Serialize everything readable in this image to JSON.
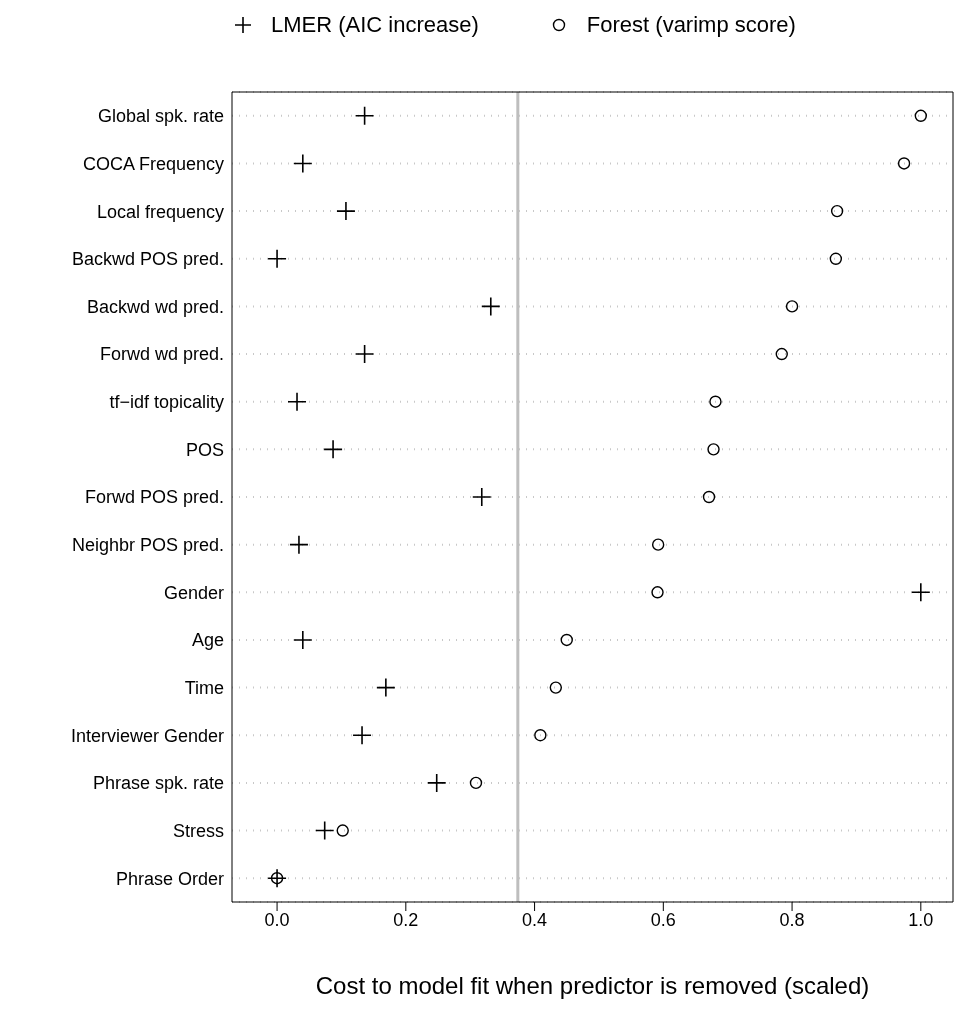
{
  "chart_data": {
    "type": "scatter",
    "xlabel": "Cost to model fit when predictor is removed (scaled)",
    "categories": [
      "Global spk. rate",
      "COCA Frequency",
      "Local frequency",
      "Backwd POS pred.",
      "Backwd wd pred.",
      "Forwd wd pred.",
      "tf−idf topicality",
      "POS",
      "Forwd POS pred.",
      "Neighbr POS pred.",
      "Gender",
      "Age",
      "Time",
      "Interviewer Gender",
      "Phrase spk. rate",
      "Stress",
      "Phrase Order"
    ],
    "series": [
      {
        "name": "LMER (AIC increase)",
        "color": "#000000",
        "marker": "cross",
        "values": [
          0.136,
          0.04,
          0.107,
          0.0,
          0.332,
          0.136,
          0.031,
          0.087,
          0.318,
          0.034,
          1.0,
          0.04,
          0.169,
          0.132,
          0.248,
          0.074,
          0.0
        ]
      },
      {
        "name": "Forest (varimp score)",
        "color": "#000000",
        "marker": "circle",
        "values": [
          1.0,
          0.974,
          0.87,
          0.868,
          0.8,
          0.784,
          0.681,
          0.678,
          0.671,
          0.592,
          0.591,
          0.45,
          0.433,
          0.409,
          0.309,
          0.102,
          0.0
        ]
      }
    ],
    "orientation": "horizontal",
    "xlim": [
      -0.07,
      1.05
    ],
    "xticks": [
      {
        "value": 0,
        "label": "0.0"
      },
      0.2,
      0.4,
      0.6,
      0.8,
      {
        "value": 1,
        "label": "1.0"
      }
    ],
    "ref_lines": [
      {
        "axis": "x",
        "value": 0.374,
        "color": "#bebebe"
      }
    ],
    "grid": "y",
    "legend": "top"
  }
}
